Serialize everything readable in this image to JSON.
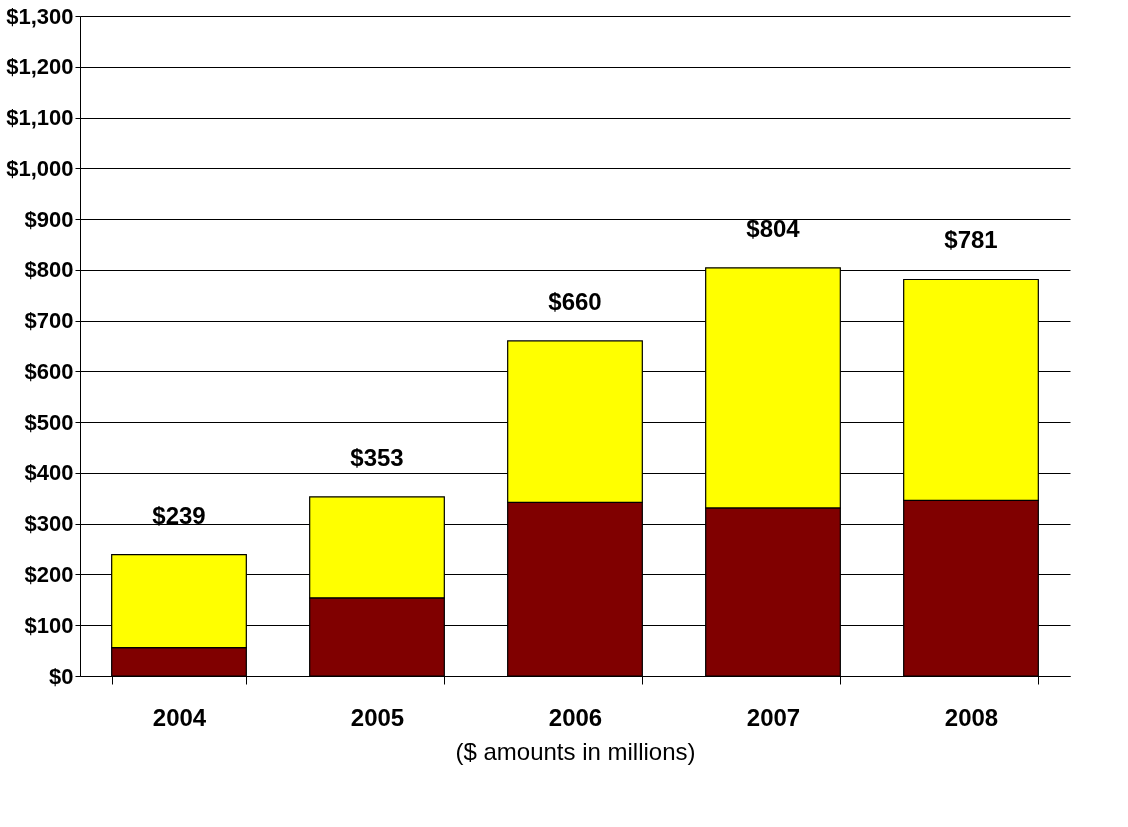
{
  "chart_data": {
    "type": "bar",
    "stacked": true,
    "xlabel": "($ amounts in millions)",
    "categories": [
      "2004",
      "2005",
      "2006",
      "2007",
      "2008"
    ],
    "series": [
      {
        "color": "#800000",
        "values": [
          56,
          154,
          342,
          331,
          346
        ]
      },
      {
        "color": "#ffff00",
        "values": [
          183,
          199,
          318,
          473,
          435
        ]
      }
    ],
    "totals": [
      "$239",
      "$353",
      "$660",
      "$804",
      "$781"
    ],
    "ylim": [
      0,
      1300
    ],
    "yticks": [
      {
        "value": 0,
        "label": "$0"
      },
      {
        "value": 100,
        "label": "$100"
      },
      {
        "value": 200,
        "label": "$200"
      },
      {
        "value": 300,
        "label": "$300"
      },
      {
        "value": 400,
        "label": "$400"
      },
      {
        "value": 500,
        "label": "$500"
      },
      {
        "value": 600,
        "label": "$600"
      },
      {
        "value": 700,
        "label": "$700"
      },
      {
        "value": 800,
        "label": "$800"
      },
      {
        "value": 900,
        "label": "$900"
      },
      {
        "value": 1000,
        "label": "$1,000"
      },
      {
        "value": 1100,
        "label": "$1,100"
      },
      {
        "value": 1200,
        "label": "$1,200"
      },
      {
        "value": 1300,
        "label": "$1,300"
      }
    ],
    "grid": "y"
  }
}
